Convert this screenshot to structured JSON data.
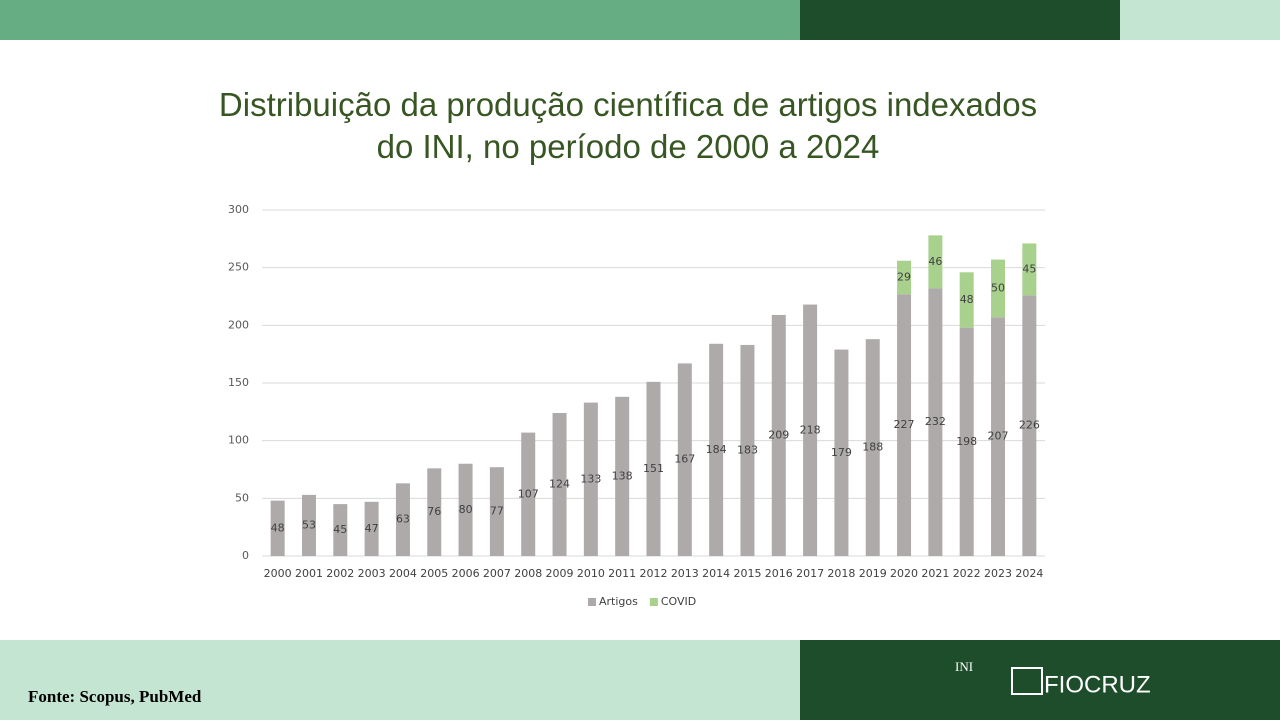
{
  "chart_data": {
    "type": "stacked_bar",
    "title": "Distribuição da produção científica de artigos indexados do INI, no período de 2000 a 2024",
    "categories": [
      "2000",
      "2001",
      "2002",
      "2003",
      "2004",
      "2005",
      "2006",
      "2007",
      "2008",
      "2009",
      "2010",
      "2011",
      "2012",
      "2013",
      "2014",
      "2015",
      "2016",
      "2017",
      "2018",
      "2019",
      "2020",
      "2021",
      "2022",
      "2023",
      "2024"
    ],
    "series": [
      {
        "name": "Artigos",
        "color": "#aeaaaa",
        "values": [
          48,
          53,
          45,
          47,
          63,
          76,
          80,
          77,
          107,
          124,
          133,
          138,
          151,
          167,
          184,
          183,
          209,
          218,
          179,
          188,
          227,
          232,
          198,
          207,
          226
        ]
      },
      {
        "name": "COVID",
        "color": "#a9d18e",
        "values": [
          null,
          null,
          null,
          null,
          null,
          null,
          null,
          null,
          null,
          null,
          null,
          null,
          null,
          null,
          null,
          null,
          null,
          null,
          null,
          null,
          29,
          46,
          48,
          50,
          45
        ]
      }
    ],
    "ylim": [
      0,
      300
    ],
    "yticks": [
      0,
      50,
      100,
      150,
      200,
      250,
      300
    ],
    "grid": true,
    "legend": "bottom"
  },
  "footer": {
    "source": "Fonte: Scopus, PubMed",
    "logos": [
      "INI",
      "FIOCRUZ"
    ]
  }
}
